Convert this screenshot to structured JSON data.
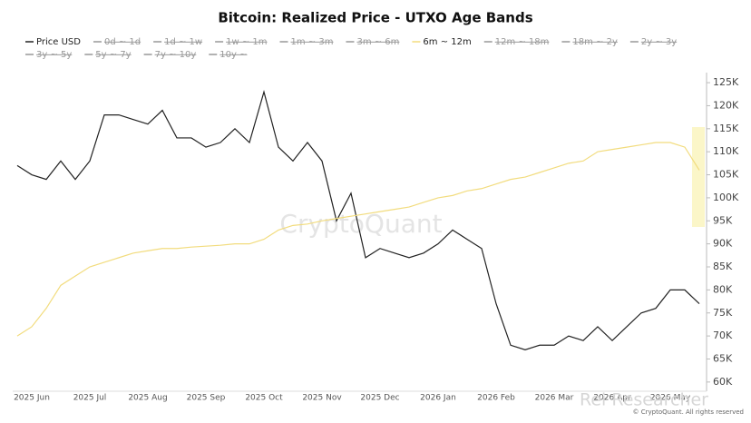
{
  "chart_data": {
    "type": "line",
    "title": "Bitcoin: Realized Price - UTXO Age Bands",
    "watermark": "CryptoQuant",
    "credit": "Rei Researcher",
    "copyright": "© CryptoQuant. All rights reserved",
    "categories": [
      null,
      "2025 Jun",
      null,
      null,
      null,
      "2025 Jul",
      null,
      null,
      null,
      "2025 Aug",
      null,
      null,
      null,
      "2025 Sep",
      null,
      null,
      null,
      "2025 Oct",
      null,
      null,
      null,
      "2025 Nov",
      null,
      null,
      null,
      "2025 Dec",
      null,
      null,
      null,
      "2026 Jan",
      null,
      null,
      null,
      "2026 Feb",
      null,
      null,
      null,
      "2026 Mar",
      null,
      null,
      null,
      "2026 Apr",
      null,
      null,
      null,
      "2026 May",
      null,
      null
    ],
    "series": [
      {
        "name": "Price USD",
        "color": "#222222",
        "visible": true,
        "values": [
          107000,
          105000,
          104000,
          108000,
          104000,
          108000,
          118000,
          118000,
          117000,
          116000,
          119000,
          113000,
          113000,
          111000,
          112000,
          115000,
          112000,
          123000,
          111000,
          108000,
          112000,
          108000,
          95000,
          101000,
          87000,
          89000,
          88000,
          87000,
          88000,
          90000,
          93000,
          91000,
          89000,
          77000,
          68000,
          67000,
          68000,
          68000,
          70000,
          69000,
          72000,
          69000,
          72000,
          75000,
          76000,
          80000,
          80000,
          77000
        ]
      },
      {
        "name": "0d ~ 1d",
        "color": "#999999",
        "visible": false
      },
      {
        "name": "1d ~ 1w",
        "color": "#999999",
        "visible": false
      },
      {
        "name": "1w ~ 1m",
        "color": "#999999",
        "visible": false
      },
      {
        "name": "1m ~ 3m",
        "color": "#999999",
        "visible": false
      },
      {
        "name": "3m ~ 6m",
        "color": "#999999",
        "visible": false
      },
      {
        "name": "6m ~ 12m",
        "color": "#f2dc7e",
        "visible": true,
        "values": [
          70000,
          72000,
          76000,
          81000,
          83000,
          85000,
          86000,
          87000,
          88000,
          88500,
          89000,
          89000,
          89300,
          89500,
          89700,
          90000,
          90000,
          91000,
          93000,
          94000,
          94300,
          95000,
          95500,
          96000,
          96500,
          97000,
          97500,
          98000,
          99000,
          100000,
          100500,
          101500,
          102000,
          103000,
          104000,
          104500,
          105500,
          106500,
          107500,
          108000,
          110000,
          110500,
          111000,
          111500,
          112000,
          112000,
          111000,
          106000
        ]
      },
      {
        "name": "12m ~ 18m",
        "color": "#999999",
        "visible": false
      },
      {
        "name": "18m ~ 2y",
        "color": "#999999",
        "visible": false
      },
      {
        "name": "2y ~ 3y",
        "color": "#999999",
        "visible": false
      },
      {
        "name": "3y ~ 5y",
        "color": "#999999",
        "visible": false
      },
      {
        "name": "5y ~ 7y",
        "color": "#999999",
        "visible": false
      },
      {
        "name": "7y ~ 10y",
        "color": "#999999",
        "visible": false
      },
      {
        "name": "10y ~",
        "color": "#999999",
        "visible": false
      }
    ],
    "ylim": [
      58000,
      126000
    ],
    "yticks": [
      {
        "value": 60000,
        "label": "60K"
      },
      {
        "value": 65000,
        "label": "65K"
      },
      {
        "value": 70000,
        "label": "70K"
      },
      {
        "value": 75000,
        "label": "75K"
      },
      {
        "value": 80000,
        "label": "80K"
      },
      {
        "value": 85000,
        "label": "85K"
      },
      {
        "value": 90000,
        "label": "90K"
      },
      {
        "value": 95000,
        "label": "95K"
      },
      {
        "value": 100000,
        "label": "100K"
      },
      {
        "value": 105000,
        "label": "105K"
      },
      {
        "value": 110000,
        "label": "110K"
      },
      {
        "value": 115000,
        "label": "115K"
      },
      {
        "value": 120000,
        "label": "120K"
      },
      {
        "value": 125000,
        "label": "125K"
      }
    ],
    "y_axis_side": "right",
    "grid": false
  }
}
